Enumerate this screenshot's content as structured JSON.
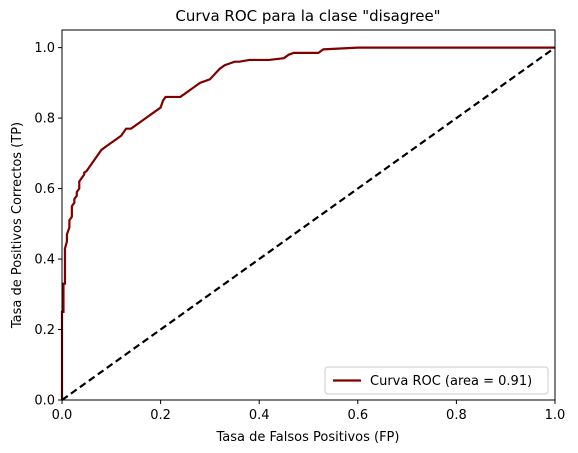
{
  "chart_data": {
    "type": "line",
    "title": "Curva ROC para la clase \"disagree\"",
    "xlabel": "Tasa de Falsos Positivos (FP)",
    "ylabel": "Tasa de Positivos Correctos (TP)",
    "xlim": [
      0.0,
      1.0
    ],
    "ylim": [
      0.0,
      1.05
    ],
    "x_ticks": [
      0.0,
      0.2,
      0.4,
      0.6,
      0.8,
      1.0
    ],
    "x_tick_labels": [
      "0.0",
      "0.2",
      "0.4",
      "0.6",
      "0.8",
      "1.0"
    ],
    "y_ticks": [
      0.0,
      0.2,
      0.4,
      0.6,
      0.8,
      1.0
    ],
    "y_tick_labels": [
      "0.0",
      "0.2",
      "0.4",
      "0.6",
      "0.8",
      "1.0"
    ],
    "grid": false,
    "legend_position": "lower-right",
    "series": [
      {
        "name": "Curva ROC (area = 0.91)",
        "color": "#800000",
        "style": "solid",
        "x": [
          0.0,
          0.0,
          0.003,
          0.003,
          0.006,
          0.006,
          0.01,
          0.01,
          0.015,
          0.015,
          0.02,
          0.02,
          0.025,
          0.025,
          0.03,
          0.03,
          0.035,
          0.035,
          0.04,
          0.045,
          0.045,
          0.05,
          0.055,
          0.06,
          0.065,
          0.07,
          0.075,
          0.08,
          0.09,
          0.1,
          0.11,
          0.12,
          0.13,
          0.14,
          0.15,
          0.16,
          0.17,
          0.18,
          0.19,
          0.2,
          0.205,
          0.21,
          0.215,
          0.24,
          0.25,
          0.26,
          0.27,
          0.28,
          0.3,
          0.31,
          0.32,
          0.33,
          0.34,
          0.35,
          0.36,
          0.38,
          0.42,
          0.45,
          0.46,
          0.47,
          0.52,
          0.53,
          0.6,
          1.0
        ],
        "y": [
          0.0,
          0.25,
          0.25,
          0.33,
          0.33,
          0.43,
          0.45,
          0.47,
          0.49,
          0.51,
          0.52,
          0.55,
          0.56,
          0.57,
          0.58,
          0.59,
          0.6,
          0.62,
          0.63,
          0.64,
          0.645,
          0.65,
          0.66,
          0.67,
          0.68,
          0.69,
          0.7,
          0.71,
          0.72,
          0.73,
          0.74,
          0.75,
          0.77,
          0.77,
          0.78,
          0.79,
          0.8,
          0.81,
          0.82,
          0.83,
          0.85,
          0.86,
          0.86,
          0.86,
          0.87,
          0.88,
          0.89,
          0.9,
          0.91,
          0.925,
          0.94,
          0.95,
          0.955,
          0.96,
          0.96,
          0.965,
          0.965,
          0.97,
          0.98,
          0.985,
          0.985,
          0.995,
          1.0,
          1.0
        ]
      },
      {
        "name": "",
        "color": "#000000",
        "style": "dashed",
        "x": [
          0.0,
          1.0
        ],
        "y": [
          0.0,
          1.0
        ]
      }
    ],
    "legend": [
      {
        "label": "Curva ROC (area = 0.91)",
        "color": "#800000"
      }
    ]
  }
}
